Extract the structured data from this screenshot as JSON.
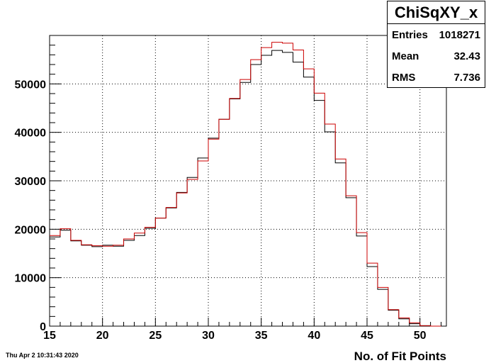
{
  "stats": {
    "title": "ChiSqXY_x",
    "rows": [
      {
        "label": "Entries",
        "value": "1018271"
      },
      {
        "label": "Mean",
        "value": "32.43"
      },
      {
        "label": "RMS",
        "value": "7.736"
      }
    ]
  },
  "footer": {
    "timestamp": "Thu Apr  2 10:31:43 2020"
  },
  "chart_data": {
    "type": "line",
    "drawstyle": "steps",
    "title": "",
    "xlabel": "No. of Fit Points",
    "ylabel": "",
    "xlim": [
      15,
      52.5
    ],
    "ylim": [
      0,
      60000
    ],
    "grid": true,
    "bin_edges": [
      15,
      16,
      17,
      18,
      19,
      20,
      21,
      22,
      23,
      24,
      25,
      26,
      27,
      28,
      29,
      30,
      31,
      32,
      33,
      34,
      35,
      36,
      37,
      38,
      39,
      40,
      41,
      42,
      43,
      44,
      45,
      46,
      47,
      48,
      49,
      50,
      51,
      52
    ],
    "x_ticks": [
      15,
      20,
      25,
      30,
      35,
      40,
      45,
      50
    ],
    "y_ticks": [
      0,
      10000,
      20000,
      30000,
      40000,
      50000
    ],
    "series": [
      {
        "color": "#000000",
        "values": [
          18400,
          19800,
          17600,
          16700,
          16400,
          16700,
          16500,
          17700,
          18700,
          20200,
          22300,
          24400,
          27600,
          30700,
          34700,
          38800,
          42700,
          46900,
          50300,
          54000,
          55900,
          56900,
          56500,
          54500,
          51400,
          46600,
          40100,
          33700,
          26500,
          18600,
          12300,
          7600,
          3300,
          1500,
          500,
          100,
          0
        ]
      },
      {
        "color": "#cc0000",
        "values": [
          18700,
          20100,
          17700,
          16800,
          16600,
          16500,
          16700,
          18000,
          19200,
          20400,
          22300,
          24500,
          27500,
          30300,
          34100,
          38600,
          42700,
          47000,
          50900,
          55000,
          57500,
          58600,
          58400,
          57000,
          53100,
          48100,
          41700,
          34500,
          26900,
          19300,
          13000,
          8000,
          3400,
          1700,
          700,
          100,
          0
        ]
      }
    ]
  }
}
